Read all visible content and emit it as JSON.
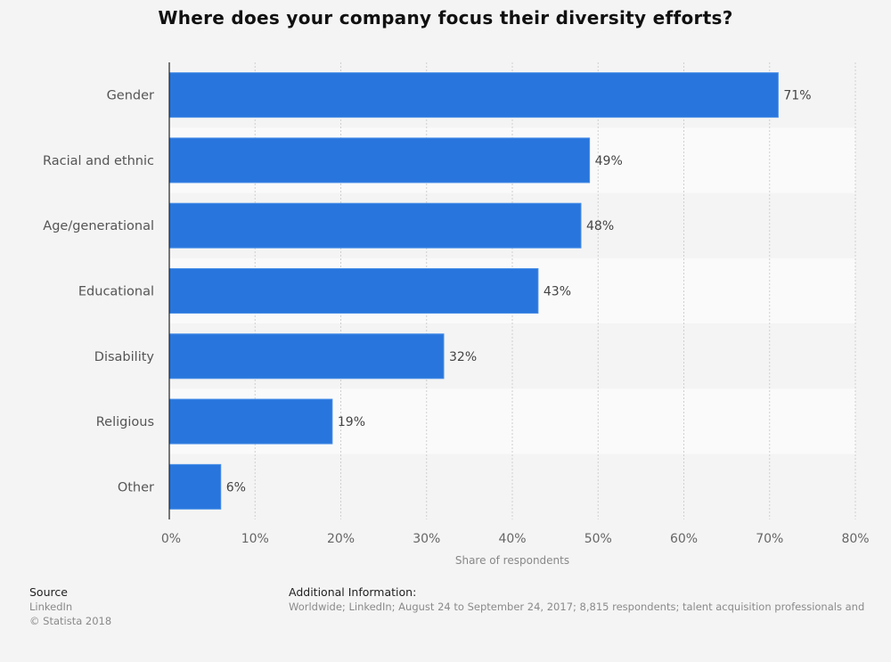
{
  "chart_data": {
    "type": "bar",
    "orientation": "horizontal",
    "title": "Where does your company focus their diversity efforts?",
    "categories": [
      "Gender",
      "Racial and ethnic",
      "Age/generational",
      "Educational",
      "Disability",
      "Religious",
      "Other"
    ],
    "values": [
      71,
      49,
      48,
      43,
      32,
      19,
      6
    ],
    "value_labels": [
      "71%",
      "49%",
      "48%",
      "43%",
      "32%",
      "19%",
      "6%"
    ],
    "xlabel": "Share of respondents",
    "ylabel": "",
    "xlim": [
      0,
      80
    ],
    "xticks": [
      0,
      10,
      20,
      30,
      40,
      50,
      60,
      70,
      80
    ],
    "xtick_labels": [
      "0%",
      "10%",
      "20%",
      "30%",
      "40%",
      "50%",
      "60%",
      "70%",
      "80%"
    ],
    "grid": "vertical dotted",
    "bar_color": "#2876dd"
  },
  "footer": {
    "source_heading": "Source",
    "source_name": "LinkedIn",
    "copyright": "© Statista 2018",
    "additional_heading": "Additional Information:",
    "additional_text": "Worldwide; LinkedIn; August 24 to September 24, 2017; 8,815 respondents; talent acquisition professionals and"
  }
}
